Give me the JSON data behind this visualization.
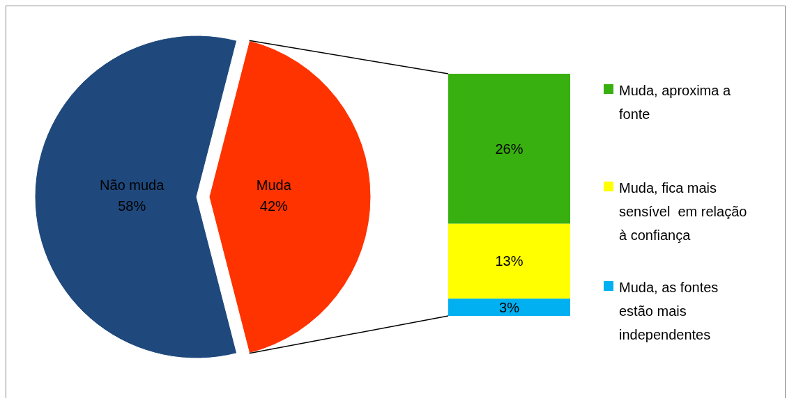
{
  "chart_data": [
    {
      "type": "pie",
      "categories": [
        "Não muda",
        "Muda"
      ],
      "values": [
        58,
        42
      ],
      "colors": [
        "#1f497d",
        "#ff3300"
      ],
      "value_labels": [
        "58%",
        "42%"
      ]
    },
    {
      "type": "bar",
      "stacked": true,
      "categories": [
        null
      ],
      "legend": "right",
      "series": [
        {
          "name": "Muda, as fontes estão mais independentes",
          "color": "#00b0f0",
          "values": [
            3
          ],
          "value_labels": [
            "3%"
          ]
        },
        {
          "name": "Muda, fica mais sensível  em relação à confiança",
          "color": "#ffff00",
          "values": [
            13
          ],
          "value_labels": [
            "13%"
          ]
        },
        {
          "name": "Muda, aproxima a fonte",
          "color": "#38b010",
          "values": [
            26
          ],
          "value_labels": [
            "26%"
          ]
        }
      ]
    }
  ]
}
